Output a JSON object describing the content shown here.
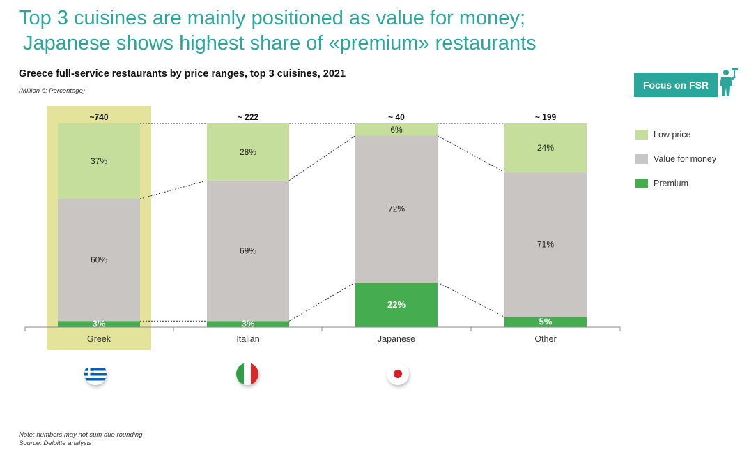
{
  "headline": {
    "line1": "Top 3 cuisines are mainly positioned as value for money;",
    "line2": "Japanese shows highest share of «premium» restaurants"
  },
  "badge": {
    "label": "Focus on FSR",
    "icon": "waiter-icon"
  },
  "colors": {
    "teal": "#2aa69a",
    "low_price": "#c5de9b",
    "value_for_money": "#c8c5c3",
    "premium": "#45ad4f",
    "highlight": "#e3e39c"
  },
  "notes": {
    "line1": "Note: numbers may not sum due rounding",
    "line2": "Source: Deloitte analysis"
  },
  "flags": [
    "greece-flag-icon",
    "italy-flag-icon",
    "japan-flag-icon"
  ],
  "chart_data": {
    "type": "bar",
    "stacked": "percent",
    "title": "Greece full-service restaurants by price ranges, top 3 cuisines, 2021",
    "subtitle": "(Million €; Percentage)",
    "categories": [
      "Greek",
      "Italian",
      "Japanese",
      "Other"
    ],
    "totals": [
      "~740",
      "~ 222",
      "~ 40",
      "~ 199"
    ],
    "highlighted_category": "Greek",
    "series": [
      {
        "name": "Premium",
        "color": "#45ad4f",
        "values": [
          3,
          3,
          22,
          5
        ],
        "labels": [
          "3%",
          "3%",
          "22%",
          "5%"
        ]
      },
      {
        "name": "Value for money",
        "color": "#c8c5c3",
        "values": [
          60,
          69,
          72,
          71
        ],
        "labels": [
          "60%",
          "69%",
          "72%",
          "71%"
        ]
      },
      {
        "name": "Low price",
        "color": "#c5de9b",
        "values": [
          37,
          28,
          6,
          24
        ],
        "labels": [
          "37%",
          "28%",
          "6%",
          "24%"
        ]
      }
    ],
    "legend": [
      "Low price",
      "Value for money",
      "Premium"
    ],
    "legend_position": "right",
    "ylim": [
      0,
      100
    ],
    "grid": false
  }
}
